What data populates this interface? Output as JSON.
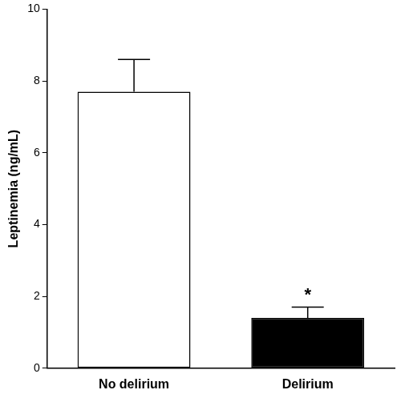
{
  "chart_data": {
    "type": "bar",
    "y_label": "Leptinemia (ng/mL)",
    "categories": [
      "No delirium",
      "Delirium"
    ],
    "values": [
      7.7,
      1.4
    ],
    "errors": [
      0.9,
      0.3
    ],
    "colors": [
      "#ffffff",
      "#000000"
    ],
    "ylim": [
      0,
      10
    ],
    "yticks": [
      0,
      2,
      4,
      6,
      8,
      10
    ],
    "grid": false,
    "annotations": [
      {
        "text": "*",
        "category": "Delirium"
      }
    ]
  }
}
